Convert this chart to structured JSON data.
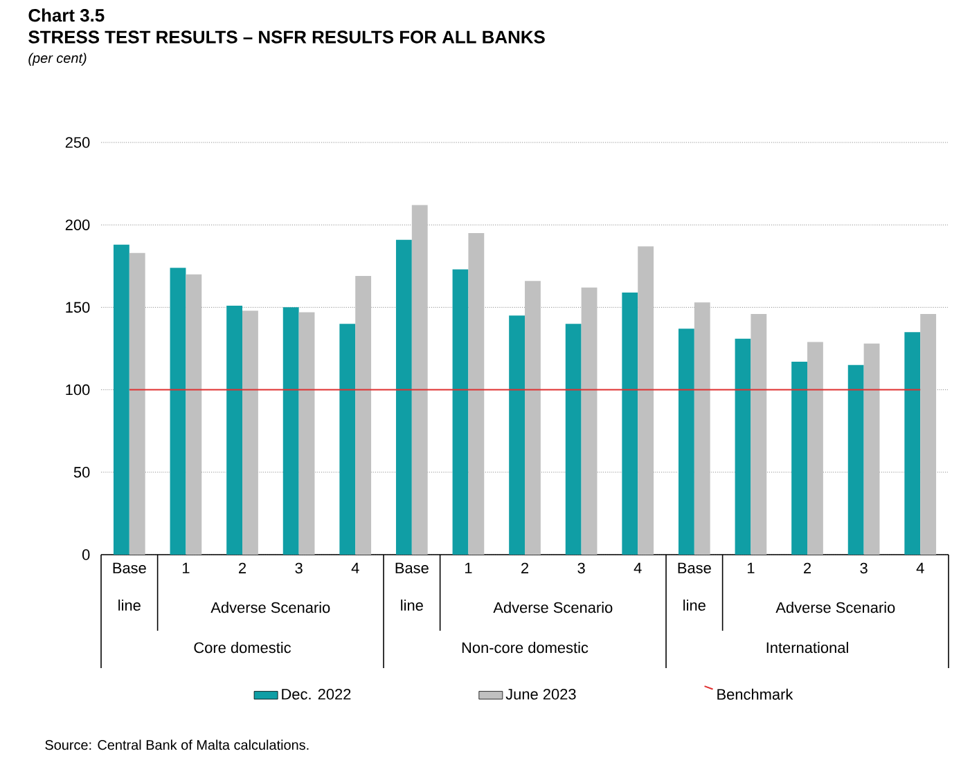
{
  "chart_data": {
    "type": "bar",
    "title": "Chart 3.5",
    "subtitle": "STRESS TEST RESULTS – NSFR RESULTS FOR ALL BANKS",
    "categories": [
      "Base line",
      "1",
      "2",
      "3",
      "4",
      "Base line",
      "1",
      "2",
      "3",
      "4",
      "Base line",
      "1",
      "2",
      "3",
      "4"
    ],
    "series": [
      {
        "name": "Dec. 2022",
        "color": "#109ea5",
        "values": [
          188,
          174,
          151,
          150,
          140,
          191,
          173,
          145,
          140,
          159,
          137,
          131,
          117,
          115,
          135
        ]
      },
      {
        "name": "June 2023",
        "color": "#c0c0c0",
        "values": [
          183,
          170,
          148,
          147,
          169,
          212,
          195,
          166,
          162,
          187,
          153,
          146,
          129,
          128,
          146
        ]
      },
      {
        "name": "Benchmark",
        "type": "line",
        "color": "#e03030",
        "values": [
          100,
          100,
          100,
          100,
          100,
          100,
          100,
          100,
          100,
          100,
          100,
          100,
          100,
          100,
          100
        ]
      }
    ],
    "ylim": [
      0,
      250
    ],
    "yticks": [
      0,
      50,
      100,
      150,
      200,
      250
    ],
    "grid": "y",
    "legend": "bottom",
    "annotations": [
      "Adverse Scenario",
      "Core domestic",
      "Adverse Scenario",
      "Non-core domestic",
      "Adverse Scenario",
      "International",
      "(per cent)",
      "Source: Central Bank of Malta calculations."
    ]
  }
}
